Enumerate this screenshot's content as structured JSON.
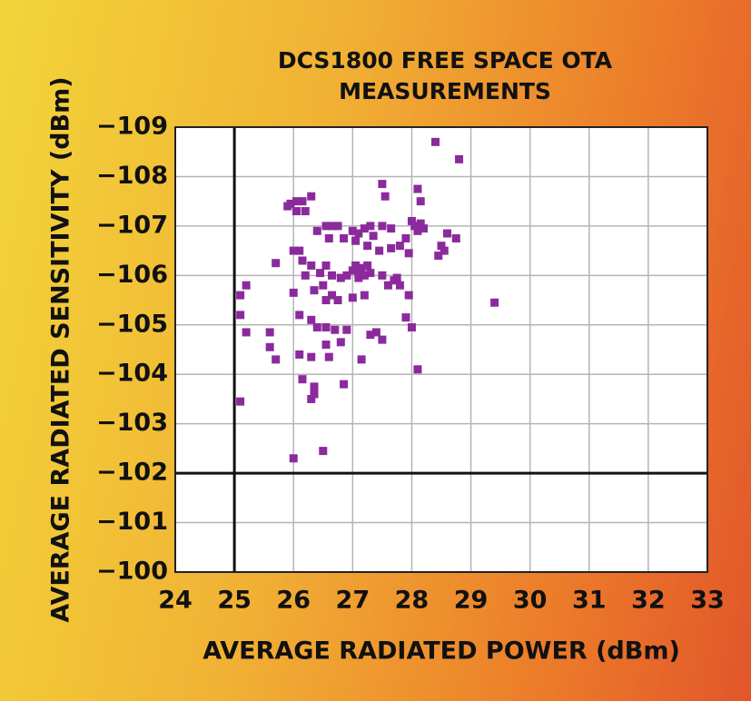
{
  "chart_data": {
    "type": "scatter",
    "title": [
      "DCS1800 FREE SPACE OTA",
      "MEASUREMENTS"
    ],
    "x_label": "AVERAGE RADIATED POWER (dBm)",
    "y_label": "AVERAGE RADIATED SENSITIVITY (dBm)",
    "color": "#8b2a9c",
    "grid": true,
    "xlim": [
      24,
      33
    ],
    "xticks": [
      24,
      25,
      26,
      27,
      28,
      29,
      30,
      31,
      32,
      33
    ],
    "ylim": [
      -100,
      -109
    ],
    "yticks": [
      {
        "value": -109,
        "label": "−109"
      },
      {
        "value": -108,
        "label": "−108"
      },
      {
        "value": -107,
        "label": "−107"
      },
      {
        "value": -106,
        "label": "−106"
      },
      {
        "value": -105,
        "label": "−105"
      },
      {
        "value": -104,
        "label": "−104"
      },
      {
        "value": -103,
        "label": "−103"
      },
      {
        "value": -102,
        "label": "−102"
      },
      {
        "value": -101,
        "label": "−101"
      },
      {
        "value": -100,
        "label": "−100"
      }
    ],
    "vlines": [
      25
    ],
    "hlines": [
      -102
    ],
    "x": [
      28.4,
      28.8,
      27.5,
      28.1,
      27.55,
      28.15,
      26.3,
      25.95,
      26.05,
      26.15,
      26.2,
      26.05,
      25.9,
      26.55,
      26.65,
      26.75,
      27.0,
      27.1,
      27.2,
      27.3,
      27.5,
      27.65,
      28.0,
      28.05,
      28.1,
      28.2,
      28.15,
      28.6,
      28.75,
      28.5,
      28.45,
      28.55,
      26.4,
      26.6,
      26.85,
      27.05,
      27.25,
      27.35,
      27.45,
      27.65,
      27.8,
      27.9,
      27.95,
      26.1,
      26.0,
      26.15,
      25.7,
      26.3,
      26.45,
      26.55,
      26.65,
      26.8,
      26.9,
      27.0,
      27.05,
      27.1,
      27.15,
      27.2,
      27.25,
      27.3,
      27.1,
      27.5,
      27.6,
      27.7,
      27.8,
      27.75,
      27.95,
      26.2,
      26.0,
      26.35,
      26.5,
      26.65,
      26.55,
      26.75,
      27.0,
      27.2,
      25.1,
      25.2,
      25.1,
      25.2,
      26.1,
      26.3,
      26.4,
      26.55,
      26.7,
      26.9,
      27.3,
      27.4,
      27.5,
      27.9,
      28.0,
      25.6,
      25.6,
      25.7,
      26.1,
      26.3,
      26.55,
      26.8,
      26.6,
      27.15,
      28.1,
      29.4,
      26.15,
      26.35,
      26.35,
      26.3,
      26.85,
      25.1,
      26.5,
      26.0
    ],
    "values": [
      -108.7,
      -108.35,
      -107.85,
      -107.75,
      -107.6,
      -107.5,
      -107.6,
      -107.45,
      -107.5,
      -107.5,
      -107.3,
      -107.3,
      -107.4,
      -107.0,
      -107.0,
      -107.0,
      -106.9,
      -106.85,
      -106.95,
      -107.0,
      -107.0,
      -106.95,
      -107.1,
      -107.0,
      -106.9,
      -106.95,
      -107.05,
      -106.85,
      -106.75,
      -106.6,
      -106.4,
      -106.5,
      -106.9,
      -106.75,
      -106.75,
      -106.7,
      -106.6,
      -106.8,
      -106.5,
      -106.55,
      -106.6,
      -106.75,
      -106.45,
      -106.5,
      -106.5,
      -106.3,
      -106.25,
      -106.2,
      -106.05,
      -106.2,
      -106.0,
      -105.95,
      -106.0,
      -106.1,
      -106.2,
      -106.05,
      -106.15,
      -106.0,
      -106.2,
      -106.05,
      -105.95,
      -106.0,
      -105.8,
      -105.9,
      -105.8,
      -105.95,
      -105.6,
      -106.0,
      -105.65,
      -105.7,
      -105.8,
      -105.6,
      -105.5,
      -105.5,
      -105.55,
      -105.6,
      -105.6,
      -105.8,
      -105.2,
      -104.85,
      -105.2,
      -105.1,
      -104.95,
      -104.95,
      -104.9,
      -104.9,
      -104.8,
      -104.85,
      -104.7,
      -105.15,
      -104.95,
      -104.85,
      -104.55,
      -104.3,
      -104.4,
      -104.35,
      -104.6,
      -104.65,
      -104.35,
      -104.3,
      -104.1,
      -105.45,
      -103.9,
      -103.75,
      -103.6,
      -103.5,
      -103.8,
      -103.45,
      -102.45,
      -102.3
    ]
  }
}
